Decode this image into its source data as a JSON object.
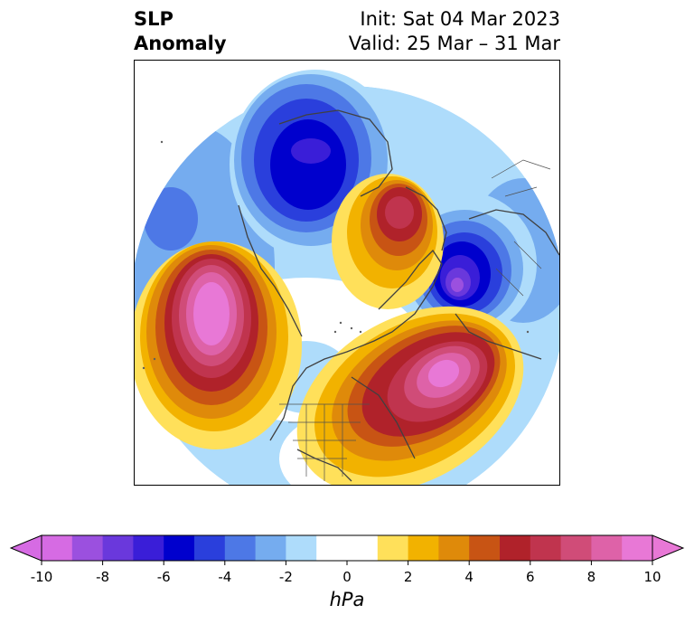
{
  "title": {
    "left_line1": "SLP",
    "left_line2": "Anomaly",
    "right_line1": "Init: Sat 04 Mar 2023",
    "right_line2": "Valid: 25 Mar – 31 Mar"
  },
  "colorbar": {
    "unit": "hPa",
    "ticks": [
      "-10",
      "-8",
      "-6",
      "-4",
      "-2",
      "0",
      "2",
      "4",
      "6",
      "8",
      "10"
    ],
    "tick_values": [
      -10,
      -8,
      -6,
      -4,
      -2,
      0,
      2,
      4,
      6,
      8,
      10
    ],
    "range": [
      -10,
      10
    ],
    "extend": "both",
    "colors": [
      "#d66be3",
      "#9b50df",
      "#6a38dc",
      "#3a1ed8",
      "#0000cd",
      "#2a3fdc",
      "#4d78e6",
      "#75acef",
      "#aedcfb",
      "#ffffff",
      "#ffffff",
      "#ffe05a",
      "#f2b200",
      "#df8a0a",
      "#c85414",
      "#b0222a",
      "#c0344e",
      "#d04c78",
      "#de62a8",
      "#e878d6"
    ],
    "extend_low_color": "#d66be3",
    "extend_high_color": "#e878d6"
  },
  "map": {
    "projection": "north polar stereographic",
    "features": [
      {
        "name": "north-pacific-high",
        "sign": "positive",
        "peak_hpa": 10
      },
      {
        "name": "western-atlantic-high",
        "sign": "positive",
        "peak_hpa": 10
      },
      {
        "name": "greenland-arctic-high",
        "sign": "positive",
        "peak_hpa": 7
      },
      {
        "name": "siberian-low",
        "sign": "negative",
        "peak_hpa": -7
      },
      {
        "name": "scandinavian-low",
        "sign": "negative",
        "peak_hpa": -9
      }
    ]
  }
}
